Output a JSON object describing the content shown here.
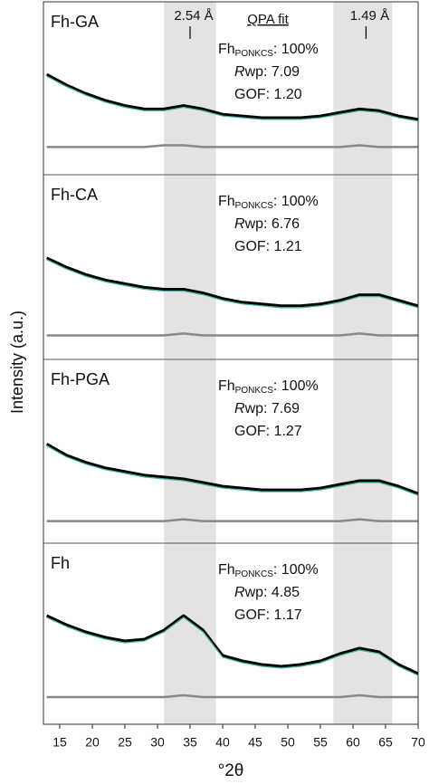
{
  "chart_data": {
    "type": "line",
    "xlabel": "°2θ",
    "ylabel": "Intensity (a.u.)",
    "xlim": [
      12.5,
      70
    ],
    "xticks": [
      15,
      20,
      25,
      30,
      35,
      40,
      45,
      50,
      55,
      60,
      65,
      70
    ],
    "shaded_ranges": [
      [
        31,
        39
      ],
      [
        57,
        66
      ]
    ],
    "shade_color": "#e3e3e3",
    "annotations": [
      {
        "x": 35,
        "text": "2.54 Å"
      },
      {
        "x": 62,
        "text": "1.49 Å"
      }
    ],
    "fit_header": "QPA fit",
    "phase": "Fh",
    "phase_sub": "PONKCS",
    "r_symbol": "R",
    "x": [
      13,
      16,
      19,
      22,
      25,
      28,
      31,
      34,
      37,
      40,
      43,
      46,
      49,
      52,
      55,
      58,
      61,
      64,
      67,
      70
    ],
    "panels": [
      {
        "label": "Fh-GA",
        "phase_fraction": ": 100%",
        "rwp": "wp: 7.09",
        "gof": "GOF: 1.20",
        "ylim": [
          0,
          100
        ],
        "series": [
          {
            "color": "#000000",
            "values": [
              58,
              52,
              47,
              43,
              40,
              38,
              38,
              40,
              38,
              35,
              34,
              33,
              33,
              33,
              34,
              36,
              38,
              37,
              34,
              32
            ]
          },
          {
            "color": "#3cb8a0",
            "values": [
              57,
              51,
              46,
              42,
              39,
              37,
              37,
              39,
              37,
              34,
              33,
              32,
              32,
              32,
              33,
              35,
              37,
              36,
              33,
              31
            ]
          },
          {
            "color": "#888888",
            "values": [
              16,
              16,
              16,
              16,
              16,
              16,
              17,
              17,
              16,
              16,
              16,
              16,
              16,
              16,
              16,
              16,
              17,
              16,
              16,
              16
            ]
          }
        ]
      },
      {
        "label": "Fh-CA",
        "phase_fraction": ": 100%",
        "rwp": "wp: 6.76",
        "gof": "GOF: 1.21",
        "ylim": [
          0,
          100
        ],
        "series": [
          {
            "color": "#000000",
            "values": [
              55,
              50,
              46,
              43,
              41,
              39,
              38,
              38,
              36,
              33,
              31,
              30,
              29,
              29,
              30,
              32,
              35,
              35,
              32,
              29
            ]
          },
          {
            "color": "#3cb8a0",
            "values": [
              54,
              49,
              45,
              42,
              40,
              38,
              37,
              37,
              35,
              32,
              30,
              29,
              28,
              28,
              29,
              31,
              34,
              34,
              31,
              28
            ]
          },
          {
            "color": "#888888",
            "values": [
              13,
              13,
              13,
              13,
              13,
              13,
              13,
              14,
              13,
              13,
              13,
              13,
              13,
              13,
              13,
              13,
              14,
              13,
              13,
              13
            ]
          }
        ]
      },
      {
        "label": "Fh-PGA",
        "phase_fraction": ": 100%",
        "rwp": "wp: 7.69",
        "gof": "GOF: 1.27",
        "ylim": [
          0,
          100
        ],
        "series": [
          {
            "color": "#000000",
            "values": [
              54,
              48,
              44,
              41,
              39,
              37,
              36,
              35,
              33,
              31,
              30,
              29,
              29,
              29,
              30,
              32,
              34,
              34,
              31,
              27
            ]
          },
          {
            "color": "#3cb8a0",
            "values": [
              53,
              47,
              43,
              40,
              38,
              36,
              35,
              34,
              32,
              30,
              29,
              28,
              28,
              28,
              29,
              31,
              33,
              33,
              30,
              26
            ]
          },
          {
            "color": "#888888",
            "values": [
              12,
              12,
              12,
              12,
              12,
              12,
              12,
              13,
              12,
              12,
              12,
              12,
              12,
              12,
              12,
              12,
              13,
              12,
              12,
              12
            ]
          }
        ]
      },
      {
        "label": "Fh",
        "phase_fraction": ": 100%",
        "rwp": "wp: 4.85",
        "gof": "GOF: 1.17",
        "ylim": [
          0,
          100
        ],
        "series": [
          {
            "color": "#000000",
            "values": [
              60,
              55,
              51,
              48,
              46,
              47,
              52,
              60,
              52,
              38,
              35,
              33,
              32,
              33,
              35,
              39,
              42,
              40,
              33,
              28
            ]
          },
          {
            "color": "#3cb8a0",
            "values": [
              59,
              54,
              50,
              47,
              45,
              46,
              51,
              59,
              51,
              37,
              34,
              32,
              31,
              32,
              34,
              38,
              41,
              39,
              32,
              27
            ]
          },
          {
            "color": "#888888",
            "values": [
              15,
              15,
              15,
              15,
              15,
              15,
              15,
              16,
              15,
              15,
              15,
              15,
              15,
              15,
              15,
              15,
              16,
              15,
              15,
              15
            ]
          }
        ]
      }
    ]
  }
}
